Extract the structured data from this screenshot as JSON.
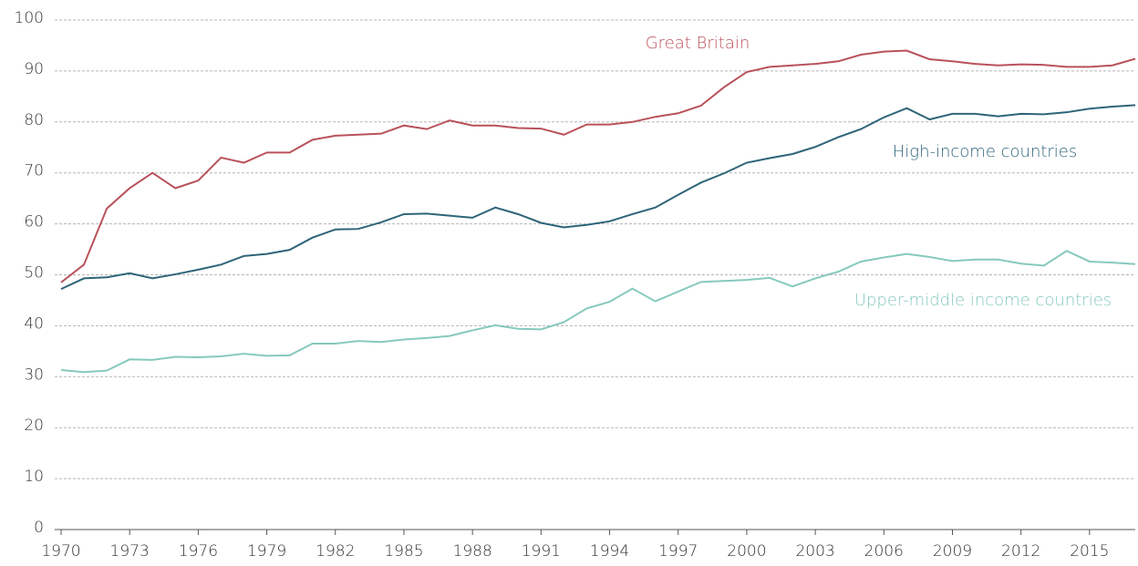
{
  "chart_data": {
    "type": "line",
    "x": [
      1970,
      1971,
      1972,
      1973,
      1974,
      1975,
      1976,
      1977,
      1978,
      1979,
      1980,
      1981,
      1982,
      1983,
      1984,
      1985,
      1986,
      1987,
      1988,
      1989,
      1990,
      1991,
      1992,
      1993,
      1994,
      1995,
      1996,
      1997,
      1998,
      1999,
      2000,
      2001,
      2002,
      2003,
      2004,
      2005,
      2006,
      2007,
      2008,
      2009,
      2010,
      2011,
      2012,
      2013,
      2014,
      2015,
      2016,
      2017
    ],
    "series": [
      {
        "name": "Great Britain",
        "color": "#b9525a",
        "values": [
          48.5,
          52,
          63,
          67,
          70,
          67,
          68.5,
          73,
          72,
          74,
          74,
          76.5,
          77.3,
          77.5,
          77.7,
          79.3,
          78.6,
          80.3,
          79.3,
          79.3,
          78.8,
          78.7,
          77.5,
          79.5,
          79.5,
          80,
          81,
          81.7,
          83.2,
          86.8,
          89.8,
          90.8,
          91.1,
          91.4,
          91.9,
          93.2,
          93.8,
          94,
          92.3,
          91.9,
          91.4,
          91.1,
          91.3,
          91.2,
          90.8,
          90.8,
          91.1,
          92.4
        ]
      },
      {
        "name": "High-income countries",
        "color": "#2e6479",
        "values": [
          47.2,
          49.3,
          49.5,
          50.3,
          49.3,
          50.1,
          51,
          52,
          53.7,
          54.1,
          54.9,
          57.3,
          58.9,
          59,
          60.3,
          61.9,
          62,
          61.6,
          61.2,
          63.2,
          61.9,
          60.2,
          59.3,
          59.8,
          60.5,
          61.9,
          63.2,
          65.7,
          68.1,
          69.9,
          72,
          72.9,
          73.7,
          75.1,
          77,
          78.6,
          80.9,
          82.7,
          80.5,
          81.6,
          81.6,
          81.1,
          81.6,
          81.5,
          81.9,
          82.6,
          83,
          83.3
        ]
      },
      {
        "name": "Upper-middle income countries",
        "color": "#86c9bd",
        "values": [
          31.3,
          30.9,
          31.2,
          33.4,
          33.3,
          33.9,
          33.8,
          34,
          34.5,
          34.1,
          34.2,
          36.5,
          36.5,
          37,
          36.8,
          37.3,
          37.6,
          38,
          39.1,
          40.1,
          39.4,
          39.3,
          40.7,
          43.4,
          44.7,
          47.3,
          44.8,
          46.7,
          48.6,
          48.8,
          49,
          49.4,
          47.7,
          49.3,
          50.6,
          52.6,
          53.4,
          54.1,
          53.5,
          52.7,
          53,
          53,
          52.2,
          51.8,
          54.7,
          52.6,
          52.4,
          52.1
        ]
      }
    ],
    "xlim": [
      1970,
      2017
    ],
    "xticks": [
      1970,
      1973,
      1976,
      1979,
      1982,
      1985,
      1988,
      1991,
      1994,
      1997,
      2000,
      2003,
      2006,
      2009,
      2012,
      2015
    ],
    "ylim": [
      0,
      100
    ],
    "yticks": [
      0,
      10,
      20,
      30,
      40,
      50,
      60,
      70,
      80,
      90,
      100
    ],
    "grid": true
  }
}
